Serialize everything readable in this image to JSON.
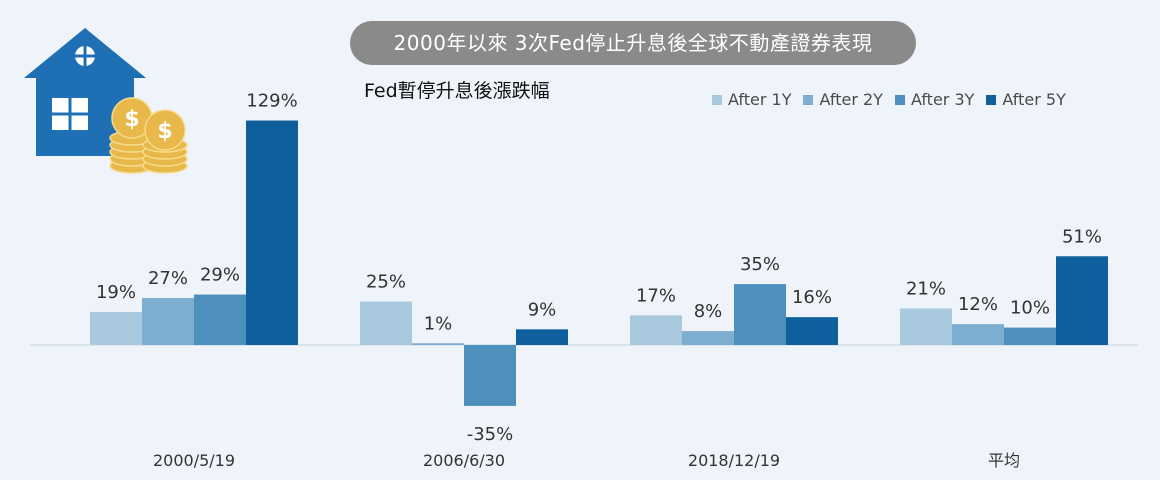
{
  "title": "2000年以來  3次Fed停止升息後全球不動產證券表現",
  "subtitle": "Fed暫停升息後漲跌幅",
  "colors": [
    "#a9c9de",
    "#7eaecf",
    "#4d8fbd",
    "#0f5f9c"
  ],
  "chart_data": {
    "type": "bar",
    "categories": [
      "2000/5/19",
      "2006/6/30",
      "2018/12/19",
      "平均"
    ],
    "series": [
      {
        "name": "After 1Y",
        "values": [
          19,
          25,
          17,
          21
        ],
        "labels": [
          "19%",
          "25%",
          "17%",
          "21%"
        ]
      },
      {
        "name": "After 2Y",
        "values": [
          27,
          1,
          8,
          12
        ],
        "labels": [
          "27%",
          "1%",
          "8%",
          "12%"
        ]
      },
      {
        "name": "After 3Y",
        "values": [
          29,
          -35,
          35,
          10
        ],
        "labels": [
          "29%",
          "-35%",
          "35%",
          "10%"
        ]
      },
      {
        "name": "After 5Y",
        "values": [
          129,
          9,
          16,
          51
        ],
        "labels": [
          "129%",
          "9%",
          "16%",
          "51%"
        ]
      }
    ],
    "ylim": [
      -50,
      129
    ],
    "legend_position": "top-right"
  }
}
